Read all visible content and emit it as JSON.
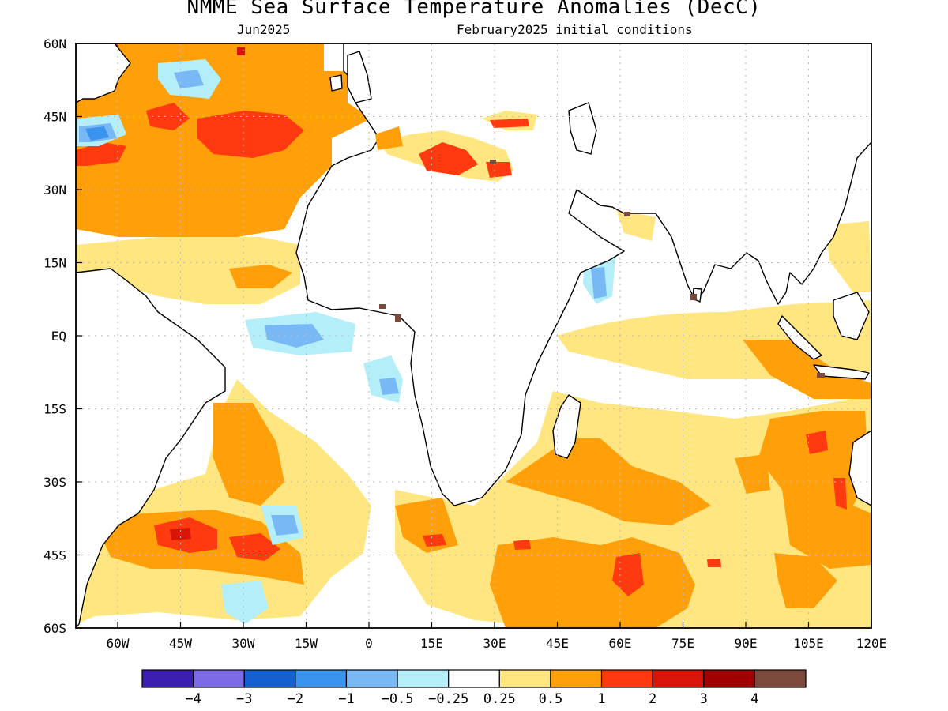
{
  "title": "NMME Sea Surface Temperature Anomalies (DecC)",
  "subtitle_left": "Jun2025",
  "subtitle_right": "February2025 initial conditions",
  "map": {
    "lon_range": [
      -70,
      120
    ],
    "lat_range": [
      -60,
      60
    ],
    "grid": "dotted",
    "x_ticks": [
      {
        "lon": -60,
        "label": "60W"
      },
      {
        "lon": -45,
        "label": "45W"
      },
      {
        "lon": -30,
        "label": "30W"
      },
      {
        "lon": -15,
        "label": "15W"
      },
      {
        "lon": 0,
        "label": "0"
      },
      {
        "lon": 15,
        "label": "15E"
      },
      {
        "lon": 30,
        "label": "30E"
      },
      {
        "lon": 45,
        "label": "45E"
      },
      {
        "lon": 60,
        "label": "60E"
      },
      {
        "lon": 75,
        "label": "75E"
      },
      {
        "lon": 90,
        "label": "90E"
      },
      {
        "lon": 105,
        "label": "105E"
      },
      {
        "lon": 120,
        "label": "120E"
      }
    ],
    "y_ticks": [
      {
        "lat": 60,
        "label": "60N"
      },
      {
        "lat": 45,
        "label": "45N"
      },
      {
        "lat": 30,
        "label": "30N"
      },
      {
        "lat": 15,
        "label": "15N"
      },
      {
        "lat": 0,
        "label": "EQ"
      },
      {
        "lat": -15,
        "label": "15S"
      },
      {
        "lat": -30,
        "label": "30S"
      },
      {
        "lat": -45,
        "label": "45S"
      },
      {
        "lat": -60,
        "label": "60S"
      }
    ]
  },
  "colorbar": {
    "colors": [
      "#3a1fb0",
      "#7d6ae6",
      "#1560d0",
      "#3a93ee",
      "#78b9f5",
      "#b4eef8",
      "#ffffff",
      "#ffe680",
      "#ff9f0a",
      "#ff3a10",
      "#d81508",
      "#a10000",
      "#7b4a3c"
    ],
    "labels": [
      "−4",
      "−3",
      "−2",
      "−1",
      "−0.5",
      "−0.25",
      "0.25",
      "0.5",
      "1",
      "2",
      "3",
      "4"
    ]
  },
  "chart_data": {
    "type": "heatmap",
    "variable": "Sea Surface Temperature Anomalies (DecC)",
    "valid": "Jun2025",
    "initial_conditions": "February2025",
    "lon_range": [
      -70,
      120
    ],
    "lat_range": [
      -60,
      60
    ],
    "levels": [
      -4,
      -3,
      -2,
      -1,
      -0.5,
      -0.25,
      0.25,
      0.5,
      1,
      2,
      3,
      4
    ],
    "regions": [
      {
        "lat": [
          30,
          60
        ],
        "lon": [
          -70,
          -10
        ],
        "value": 1
      },
      {
        "lat": [
          37,
          47
        ],
        "lon": [
          -45,
          -15
        ],
        "value": 2
      },
      {
        "lat": [
          40,
          45
        ],
        "lon": [
          -68,
          -60
        ],
        "value": -2
      },
      {
        "lat": [
          32,
          40
        ],
        "lon": [
          10,
          35
        ],
        "value": 2
      },
      {
        "lat": [
          -2,
          2
        ],
        "lon": [
          -20,
          -5
        ],
        "value": -1
      },
      {
        "lat": [
          7,
          12
        ],
        "lon": [
          52,
          58
        ],
        "value": -1
      },
      {
        "lat": [
          -45,
          -36
        ],
        "lon": [
          -50,
          -20
        ],
        "value": 2
      },
      {
        "lat": [
          -60,
          -35
        ],
        "lon": [
          30,
          90
        ],
        "value": 1
      },
      {
        "lat": [
          -25,
          -3
        ],
        "lon": [
          95,
          120
        ],
        "value": 1
      },
      {
        "lat": [
          -8,
          3
        ],
        "lon": [
          45,
          100
        ],
        "value": 0.5
      }
    ]
  }
}
